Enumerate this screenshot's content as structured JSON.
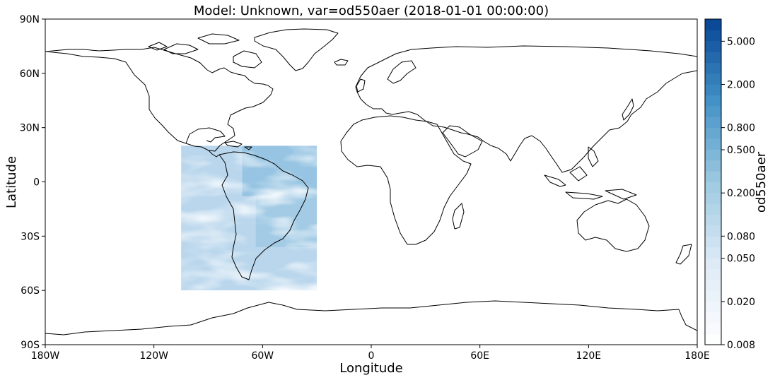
{
  "title": "Model: Unknown, var=od550aer (2018-01-01 00:00:00)",
  "xlabel": "Longitude",
  "ylabel": "Latitude",
  "colorbar_label": "od550aer",
  "chart_data": {
    "type": "heatmap",
    "projection": "plate-carree",
    "xlim": [
      -180,
      180
    ],
    "ylim": [
      -90,
      90
    ],
    "x_ticks": [
      {
        "value": -180,
        "label": "180W"
      },
      {
        "value": -120,
        "label": "120W"
      },
      {
        "value": -60,
        "label": "60W"
      },
      {
        "value": 0,
        "label": "0"
      },
      {
        "value": 60,
        "label": "60E"
      },
      {
        "value": 120,
        "label": "120E"
      },
      {
        "value": 180,
        "label": "180E"
      }
    ],
    "y_ticks": [
      {
        "value": 90,
        "label": "90N"
      },
      {
        "value": 60,
        "label": "60N"
      },
      {
        "value": 30,
        "label": "30N"
      },
      {
        "value": 0,
        "label": "0"
      },
      {
        "value": -30,
        "label": "30S"
      },
      {
        "value": -60,
        "label": "60S"
      },
      {
        "value": -90,
        "label": "90S"
      }
    ],
    "data_region": {
      "lon_min": -105,
      "lon_max": -30,
      "lat_min": -60,
      "lat_max": 20
    },
    "colormap": "Blues",
    "colorbar": {
      "scale": "log",
      "range": [
        0.008,
        8.0
      ],
      "tick_labels": [
        "0.008",
        "0.020",
        "0.050",
        "0.080",
        "0.200",
        "0.500",
        "0.800",
        "2.000",
        "5.000"
      ],
      "tick_values": [
        0.008,
        0.02,
        0.05,
        0.08,
        0.2,
        0.5,
        0.8,
        2.0,
        5.0
      ]
    }
  }
}
